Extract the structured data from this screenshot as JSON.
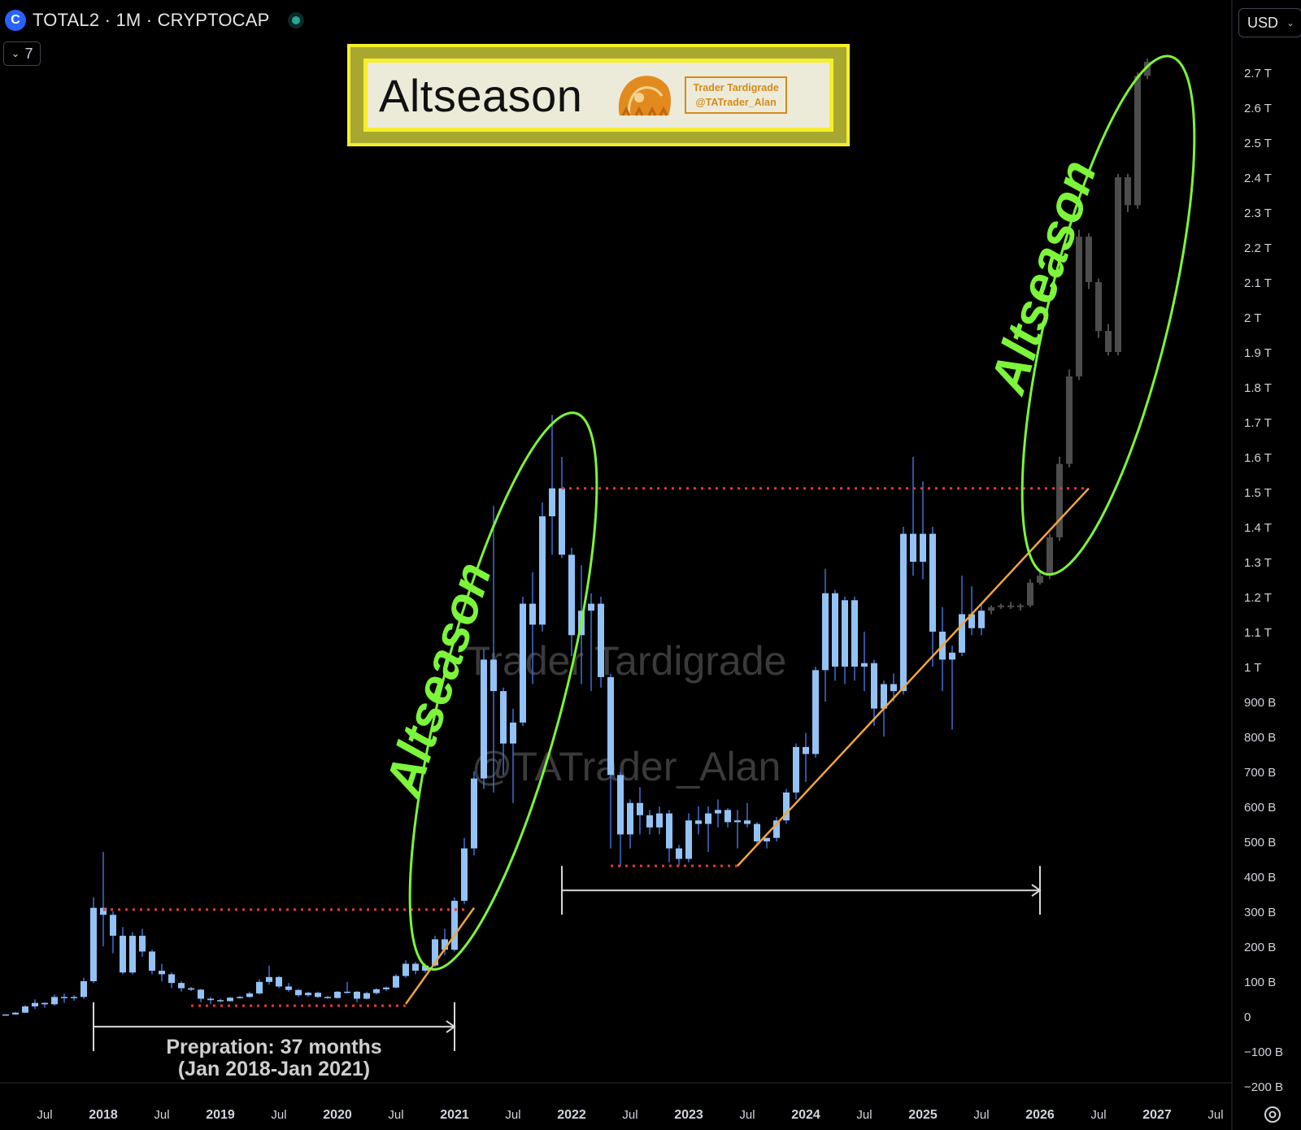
{
  "header": {
    "symbol_icon": "C",
    "symbol_title": "TOTAL2 · 1M · CRYPTOCAP",
    "indicator_count": "7",
    "currency": "USD"
  },
  "title_box": {
    "title": "Altseason",
    "stamp_line1": "Trader Tardigrade",
    "stamp_line2": "@TATrader_Alan"
  },
  "colors": {
    "background": "#000000",
    "candle": "#93c2f5",
    "candle_wick": "#3f6fd6",
    "projection": "#4d4d4d",
    "support_line": "#f3a53a",
    "resistance_dots": "#e53935",
    "ellipse": "#7cf53a",
    "annotation": "#7cf53a",
    "bracket": "#d9d9d9",
    "title_border": "#f5ee2a",
    "watermark": "#3a3a3a"
  },
  "chart_data": {
    "type": "candlestick",
    "title": "TOTAL2 · 1M · CRYPTOCAP",
    "interval": "1M",
    "currency": "USD",
    "grid": false,
    "ylim": [
      -200,
      2760
    ],
    "y_unit": "B",
    "y_ticks": [
      {
        "v": 2700,
        "label": "2.7 T"
      },
      {
        "v": 2600,
        "label": "2.6 T"
      },
      {
        "v": 2500,
        "label": "2.5 T"
      },
      {
        "v": 2400,
        "label": "2.4 T"
      },
      {
        "v": 2300,
        "label": "2.3 T"
      },
      {
        "v": 2200,
        "label": "2.2 T"
      },
      {
        "v": 2100,
        "label": "2.1 T"
      },
      {
        "v": 2000,
        "label": "2 T"
      },
      {
        "v": 1900,
        "label": "1.9 T"
      },
      {
        "v": 1800,
        "label": "1.8 T"
      },
      {
        "v": 1700,
        "label": "1.7 T"
      },
      {
        "v": 1600,
        "label": "1.6 T"
      },
      {
        "v": 1500,
        "label": "1.5 T"
      },
      {
        "v": 1400,
        "label": "1.4 T"
      },
      {
        "v": 1300,
        "label": "1.3 T"
      },
      {
        "v": 1200,
        "label": "1.2 T"
      },
      {
        "v": 1100,
        "label": "1.1 T"
      },
      {
        "v": 1000,
        "label": "1 T"
      },
      {
        "v": 900,
        "label": "900 B"
      },
      {
        "v": 800,
        "label": "800 B"
      },
      {
        "v": 700,
        "label": "700 B"
      },
      {
        "v": 600,
        "label": "600 B"
      },
      {
        "v": 500,
        "label": "500 B"
      },
      {
        "v": 400,
        "label": "400 B"
      },
      {
        "v": 300,
        "label": "300 B"
      },
      {
        "v": 200,
        "label": "200 B"
      },
      {
        "v": 100,
        "label": "100 B"
      },
      {
        "v": 0,
        "label": "0"
      },
      {
        "v": -100,
        "label": "−100 B"
      },
      {
        "v": -200,
        "label": "−200 B"
      }
    ],
    "x_ticks": [
      {
        "t": "2017-07",
        "label": "Jul",
        "bold": false
      },
      {
        "t": "2018-01",
        "label": "2018",
        "bold": true
      },
      {
        "t": "2018-07",
        "label": "Jul",
        "bold": false
      },
      {
        "t": "2019-01",
        "label": "2019",
        "bold": true
      },
      {
        "t": "2019-07",
        "label": "Jul",
        "bold": false
      },
      {
        "t": "2020-01",
        "label": "2020",
        "bold": true
      },
      {
        "t": "2020-07",
        "label": "Jul",
        "bold": false
      },
      {
        "t": "2021-01",
        "label": "2021",
        "bold": true
      },
      {
        "t": "2021-07",
        "label": "Jul",
        "bold": false
      },
      {
        "t": "2022-01",
        "label": "2022",
        "bold": true
      },
      {
        "t": "2022-07",
        "label": "Jul",
        "bold": false
      },
      {
        "t": "2023-01",
        "label": "2023",
        "bold": true
      },
      {
        "t": "2023-07",
        "label": "Jul",
        "bold": false
      },
      {
        "t": "2024-01",
        "label": "2024",
        "bold": true
      },
      {
        "t": "2024-07",
        "label": "Jul",
        "bold": false
      },
      {
        "t": "2025-01",
        "label": "2025",
        "bold": true
      },
      {
        "t": "2025-07",
        "label": "Jul",
        "bold": false
      },
      {
        "t": "2026-01",
        "label": "2026",
        "bold": true
      },
      {
        "t": "2026-07",
        "label": "Jul",
        "bold": false
      },
      {
        "t": "2027-01",
        "label": "2027",
        "bold": true
      },
      {
        "t": "2027-07",
        "label": "Jul",
        "bold": false
      }
    ],
    "candles": [
      {
        "t": "2016-12",
        "o": 1,
        "h": 2,
        "l": 0,
        "c": 1
      },
      {
        "t": "2017-01",
        "o": 1,
        "h": 3,
        "l": 0,
        "c": 2
      },
      {
        "t": "2017-02",
        "o": 2,
        "h": 4,
        "l": 1,
        "c": 3
      },
      {
        "t": "2017-03",
        "o": 3,
        "h": 6,
        "l": 2,
        "c": 5
      },
      {
        "t": "2017-04",
        "o": 5,
        "h": 12,
        "l": 4,
        "c": 10
      },
      {
        "t": "2017-05",
        "o": 10,
        "h": 32,
        "l": 9,
        "c": 28
      },
      {
        "t": "2017-06",
        "o": 28,
        "h": 48,
        "l": 20,
        "c": 38
      },
      {
        "t": "2017-07",
        "o": 38,
        "h": 40,
        "l": 24,
        "c": 34
      },
      {
        "t": "2017-08",
        "o": 34,
        "h": 62,
        "l": 30,
        "c": 55
      },
      {
        "t": "2017-09",
        "o": 55,
        "h": 65,
        "l": 38,
        "c": 52
      },
      {
        "t": "2017-10",
        "o": 52,
        "h": 60,
        "l": 44,
        "c": 55
      },
      {
        "t": "2017-11",
        "o": 55,
        "h": 110,
        "l": 50,
        "c": 100
      },
      {
        "t": "2017-12",
        "o": 100,
        "h": 340,
        "l": 95,
        "c": 310
      },
      {
        "t": "2018-01",
        "o": 310,
        "h": 470,
        "l": 200,
        "c": 290
      },
      {
        "t": "2018-02",
        "o": 290,
        "h": 300,
        "l": 180,
        "c": 230
      },
      {
        "t": "2018-03",
        "o": 230,
        "h": 255,
        "l": 120,
        "c": 125
      },
      {
        "t": "2018-04",
        "o": 125,
        "h": 240,
        "l": 120,
        "c": 230
      },
      {
        "t": "2018-05",
        "o": 230,
        "h": 250,
        "l": 170,
        "c": 185
      },
      {
        "t": "2018-06",
        "o": 185,
        "h": 190,
        "l": 120,
        "c": 130
      },
      {
        "t": "2018-07",
        "o": 130,
        "h": 150,
        "l": 100,
        "c": 120
      },
      {
        "t": "2018-08",
        "o": 120,
        "h": 125,
        "l": 80,
        "c": 95
      },
      {
        "t": "2018-09",
        "o": 95,
        "h": 100,
        "l": 70,
        "c": 80
      },
      {
        "t": "2018-10",
        "o": 80,
        "h": 84,
        "l": 72,
        "c": 76
      },
      {
        "t": "2018-11",
        "o": 76,
        "h": 78,
        "l": 40,
        "c": 50
      },
      {
        "t": "2018-12",
        "o": 50,
        "h": 55,
        "l": 35,
        "c": 46
      },
      {
        "t": "2019-01",
        "o": 46,
        "h": 50,
        "l": 40,
        "c": 43
      },
      {
        "t": "2019-02",
        "o": 43,
        "h": 55,
        "l": 42,
        "c": 53
      },
      {
        "t": "2019-03",
        "o": 53,
        "h": 58,
        "l": 50,
        "c": 55
      },
      {
        "t": "2019-04",
        "o": 55,
        "h": 70,
        "l": 53,
        "c": 65
      },
      {
        "t": "2019-05",
        "o": 65,
        "h": 105,
        "l": 62,
        "c": 98
      },
      {
        "t": "2019-06",
        "o": 98,
        "h": 145,
        "l": 90,
        "c": 112
      },
      {
        "t": "2019-07",
        "o": 112,
        "h": 115,
        "l": 80,
        "c": 85
      },
      {
        "t": "2019-08",
        "o": 85,
        "h": 95,
        "l": 70,
        "c": 75
      },
      {
        "t": "2019-09",
        "o": 75,
        "h": 78,
        "l": 55,
        "c": 60
      },
      {
        "t": "2019-10",
        "o": 60,
        "h": 70,
        "l": 55,
        "c": 67
      },
      {
        "t": "2019-11",
        "o": 67,
        "h": 70,
        "l": 52,
        "c": 55
      },
      {
        "t": "2019-12",
        "o": 55,
        "h": 58,
        "l": 50,
        "c": 52
      },
      {
        "t": "2020-01",
        "o": 52,
        "h": 72,
        "l": 50,
        "c": 70
      },
      {
        "t": "2020-02",
        "o": 70,
        "h": 98,
        "l": 65,
        "c": 70
      },
      {
        "t": "2020-03",
        "o": 70,
        "h": 72,
        "l": 40,
        "c": 50
      },
      {
        "t": "2020-04",
        "o": 50,
        "h": 70,
        "l": 48,
        "c": 66
      },
      {
        "t": "2020-05",
        "o": 66,
        "h": 80,
        "l": 62,
        "c": 77
      },
      {
        "t": "2020-06",
        "o": 77,
        "h": 85,
        "l": 72,
        "c": 82
      },
      {
        "t": "2020-07",
        "o": 82,
        "h": 120,
        "l": 80,
        "c": 115
      },
      {
        "t": "2020-08",
        "o": 115,
        "h": 160,
        "l": 110,
        "c": 150
      },
      {
        "t": "2020-09",
        "o": 150,
        "h": 155,
        "l": 120,
        "c": 130
      },
      {
        "t": "2020-10",
        "o": 130,
        "h": 150,
        "l": 125,
        "c": 145
      },
      {
        "t": "2020-11",
        "o": 145,
        "h": 230,
        "l": 140,
        "c": 220
      },
      {
        "t": "2020-12",
        "o": 220,
        "h": 250,
        "l": 175,
        "c": 190
      },
      {
        "t": "2021-01",
        "o": 190,
        "h": 340,
        "l": 185,
        "c": 330
      },
      {
        "t": "2021-02",
        "o": 330,
        "h": 510,
        "l": 320,
        "c": 480
      },
      {
        "t": "2021-03",
        "o": 480,
        "h": 700,
        "l": 460,
        "c": 680
      },
      {
        "t": "2021-04",
        "o": 680,
        "h": 1050,
        "l": 650,
        "c": 1020
      },
      {
        "t": "2021-05",
        "o": 1020,
        "h": 1460,
        "l": 640,
        "c": 930
      },
      {
        "t": "2021-06",
        "o": 930,
        "h": 940,
        "l": 690,
        "c": 780
      },
      {
        "t": "2021-07",
        "o": 780,
        "h": 880,
        "l": 610,
        "c": 840
      },
      {
        "t": "2021-08",
        "o": 840,
        "h": 1200,
        "l": 830,
        "c": 1180
      },
      {
        "t": "2021-09",
        "o": 1180,
        "h": 1270,
        "l": 950,
        "c": 1120
      },
      {
        "t": "2021-10",
        "o": 1120,
        "h": 1470,
        "l": 1100,
        "c": 1430
      },
      {
        "t": "2021-11",
        "o": 1430,
        "h": 1720,
        "l": 1320,
        "c": 1510
      },
      {
        "t": "2021-12",
        "o": 1510,
        "h": 1600,
        "l": 1310,
        "c": 1320
      },
      {
        "t": "2022-01",
        "o": 1320,
        "h": 1340,
        "l": 1030,
        "c": 1090
      },
      {
        "t": "2022-02",
        "o": 1090,
        "h": 1290,
        "l": 950,
        "c": 1160
      },
      {
        "t": "2022-03",
        "o": 1160,
        "h": 1210,
        "l": 930,
        "c": 1180
      },
      {
        "t": "2022-04",
        "o": 1180,
        "h": 1200,
        "l": 940,
        "c": 970
      },
      {
        "t": "2022-05",
        "o": 970,
        "h": 980,
        "l": 480,
        "c": 690
      },
      {
        "t": "2022-06",
        "o": 690,
        "h": 700,
        "l": 430,
        "c": 520
      },
      {
        "t": "2022-07",
        "o": 520,
        "h": 620,
        "l": 480,
        "c": 610
      },
      {
        "t": "2022-08",
        "o": 610,
        "h": 655,
        "l": 520,
        "c": 575
      },
      {
        "t": "2022-09",
        "o": 575,
        "h": 590,
        "l": 520,
        "c": 540
      },
      {
        "t": "2022-10",
        "o": 540,
        "h": 600,
        "l": 520,
        "c": 580
      },
      {
        "t": "2022-11",
        "o": 580,
        "h": 590,
        "l": 440,
        "c": 480
      },
      {
        "t": "2022-12",
        "o": 480,
        "h": 490,
        "l": 430,
        "c": 450
      },
      {
        "t": "2023-01",
        "o": 450,
        "h": 580,
        "l": 440,
        "c": 560
      },
      {
        "t": "2023-02",
        "o": 560,
        "h": 600,
        "l": 520,
        "c": 550
      },
      {
        "t": "2023-03",
        "o": 550,
        "h": 600,
        "l": 470,
        "c": 580
      },
      {
        "t": "2023-04",
        "o": 580,
        "h": 620,
        "l": 540,
        "c": 590
      },
      {
        "t": "2023-05",
        "o": 590,
        "h": 595,
        "l": 540,
        "c": 555
      },
      {
        "t": "2023-06",
        "o": 555,
        "h": 590,
        "l": 480,
        "c": 560
      },
      {
        "t": "2023-07",
        "o": 560,
        "h": 610,
        "l": 540,
        "c": 550
      },
      {
        "t": "2023-08",
        "o": 550,
        "h": 555,
        "l": 490,
        "c": 500
      },
      {
        "t": "2023-09",
        "o": 500,
        "h": 510,
        "l": 480,
        "c": 510
      },
      {
        "t": "2023-10",
        "o": 510,
        "h": 570,
        "l": 500,
        "c": 560
      },
      {
        "t": "2023-11",
        "o": 560,
        "h": 650,
        "l": 550,
        "c": 640
      },
      {
        "t": "2023-12",
        "o": 640,
        "h": 780,
        "l": 620,
        "c": 770
      },
      {
        "t": "2024-01",
        "o": 770,
        "h": 810,
        "l": 670,
        "c": 750
      },
      {
        "t": "2024-02",
        "o": 750,
        "h": 1000,
        "l": 740,
        "c": 990
      },
      {
        "t": "2024-03",
        "o": 990,
        "h": 1280,
        "l": 900,
        "c": 1210
      },
      {
        "t": "2024-04",
        "o": 1210,
        "h": 1220,
        "l": 960,
        "c": 1000
      },
      {
        "t": "2024-05",
        "o": 1000,
        "h": 1200,
        "l": 950,
        "c": 1190
      },
      {
        "t": "2024-06",
        "o": 1190,
        "h": 1200,
        "l": 960,
        "c": 1000
      },
      {
        "t": "2024-07",
        "o": 1000,
        "h": 1100,
        "l": 930,
        "c": 1010
      },
      {
        "t": "2024-08",
        "o": 1010,
        "h": 1020,
        "l": 830,
        "c": 880
      },
      {
        "t": "2024-09",
        "o": 880,
        "h": 960,
        "l": 800,
        "c": 950
      },
      {
        "t": "2024-10",
        "o": 950,
        "h": 980,
        "l": 900,
        "c": 930
      },
      {
        "t": "2024-11",
        "o": 930,
        "h": 1400,
        "l": 920,
        "c": 1380
      },
      {
        "t": "2024-12",
        "o": 1380,
        "h": 1600,
        "l": 1260,
        "c": 1300
      },
      {
        "t": "2025-01",
        "o": 1300,
        "h": 1530,
        "l": 1250,
        "c": 1380
      },
      {
        "t": "2025-02",
        "o": 1380,
        "h": 1400,
        "l": 1000,
        "c": 1100
      },
      {
        "t": "2025-03",
        "o": 1100,
        "h": 1170,
        "l": 930,
        "c": 1020
      },
      {
        "t": "2025-04",
        "o": 1020,
        "h": 1060,
        "l": 820,
        "c": 1040
      },
      {
        "t": "2025-05",
        "o": 1040,
        "h": 1260,
        "l": 1030,
        "c": 1150
      },
      {
        "t": "2025-06",
        "o": 1150,
        "h": 1230,
        "l": 1090,
        "c": 1110
      },
      {
        "t": "2025-07",
        "o": 1110,
        "h": 1180,
        "l": 1090,
        "c": 1160
      }
    ],
    "projection": [
      {
        "t": "2025-08",
        "o": 1160,
        "h": 1175,
        "l": 1150,
        "c": 1170
      },
      {
        "t": "2025-09",
        "o": 1170,
        "h": 1180,
        "l": 1165,
        "c": 1175
      },
      {
        "t": "2025-10",
        "o": 1175,
        "h": 1185,
        "l": 1165,
        "c": 1170
      },
      {
        "t": "2025-11",
        "o": 1170,
        "h": 1180,
        "l": 1160,
        "c": 1175
      },
      {
        "t": "2025-12",
        "o": 1175,
        "h": 1250,
        "l": 1170,
        "c": 1240
      },
      {
        "t": "2026-01",
        "o": 1240,
        "h": 1270,
        "l": 1235,
        "c": 1260
      },
      {
        "t": "2026-02",
        "o": 1260,
        "h": 1380,
        "l": 1250,
        "c": 1370
      },
      {
        "t": "2026-03",
        "o": 1370,
        "h": 1600,
        "l": 1360,
        "c": 1580
      },
      {
        "t": "2026-04",
        "o": 1580,
        "h": 1850,
        "l": 1570,
        "c": 1830
      },
      {
        "t": "2026-05",
        "o": 1830,
        "h": 2250,
        "l": 1820,
        "c": 2230
      },
      {
        "t": "2026-06",
        "o": 2230,
        "h": 2240,
        "l": 2080,
        "c": 2100
      },
      {
        "t": "2026-07",
        "o": 2100,
        "h": 2110,
        "l": 1940,
        "c": 1960
      },
      {
        "t": "2026-08",
        "o": 1960,
        "h": 1980,
        "l": 1890,
        "c": 1900
      },
      {
        "t": "2026-09",
        "o": 1900,
        "h": 2410,
        "l": 1890,
        "c": 2400
      },
      {
        "t": "2026-10",
        "o": 2400,
        "h": 2410,
        "l": 2300,
        "c": 2320
      },
      {
        "t": "2026-11",
        "o": 2320,
        "h": 2700,
        "l": 2310,
        "c": 2690
      },
      {
        "t": "2026-12",
        "o": 2690,
        "h": 2740,
        "l": 2680,
        "c": 2730
      }
    ],
    "resistance_lines": [
      {
        "from": "2018-01",
        "to": "2021-02",
        "value": 305
      },
      {
        "from": "2021-12",
        "to": "2026-06",
        "value": 1510
      }
    ],
    "support_levels": [
      {
        "from": "2018-10",
        "to": "2020-08",
        "value": 30
      },
      {
        "from": "2022-05",
        "to": "2023-06",
        "value": 430
      }
    ],
    "support_trendlines": [
      {
        "from": {
          "t": "2020-08",
          "v": 35
        },
        "to": {
          "t": "2021-03",
          "v": 310
        }
      },
      {
        "from": {
          "t": "2023-06",
          "v": 430
        },
        "to": {
          "t": "2026-06",
          "v": 1510
        }
      }
    ],
    "ellipses": [
      {
        "t1": "2020-11",
        "v1": 180,
        "t2": "2022-01",
        "v2": 1680
      },
      {
        "t1": "2026-02",
        "v1": 1310,
        "t2": "2027-02",
        "v2": 2700
      }
    ],
    "annotations": [
      {
        "text": "Altseason",
        "t": "2021-01",
        "v": 950
      },
      {
        "text": "Altseason",
        "t": "2026-03",
        "v": 2100
      }
    ],
    "brackets": [
      {
        "from": "2017-12",
        "to": "2021-01",
        "v": -30,
        "label1": "Prepration: 37 months",
        "label2": "(Jan 2018-Jan 2021)"
      },
      {
        "from": "2021-12",
        "to": "2026-01",
        "v": 360,
        "label1": "",
        "label2": ""
      }
    ],
    "watermark": [
      "Trader Tardigrade",
      "@TATrader_Alan"
    ]
  }
}
